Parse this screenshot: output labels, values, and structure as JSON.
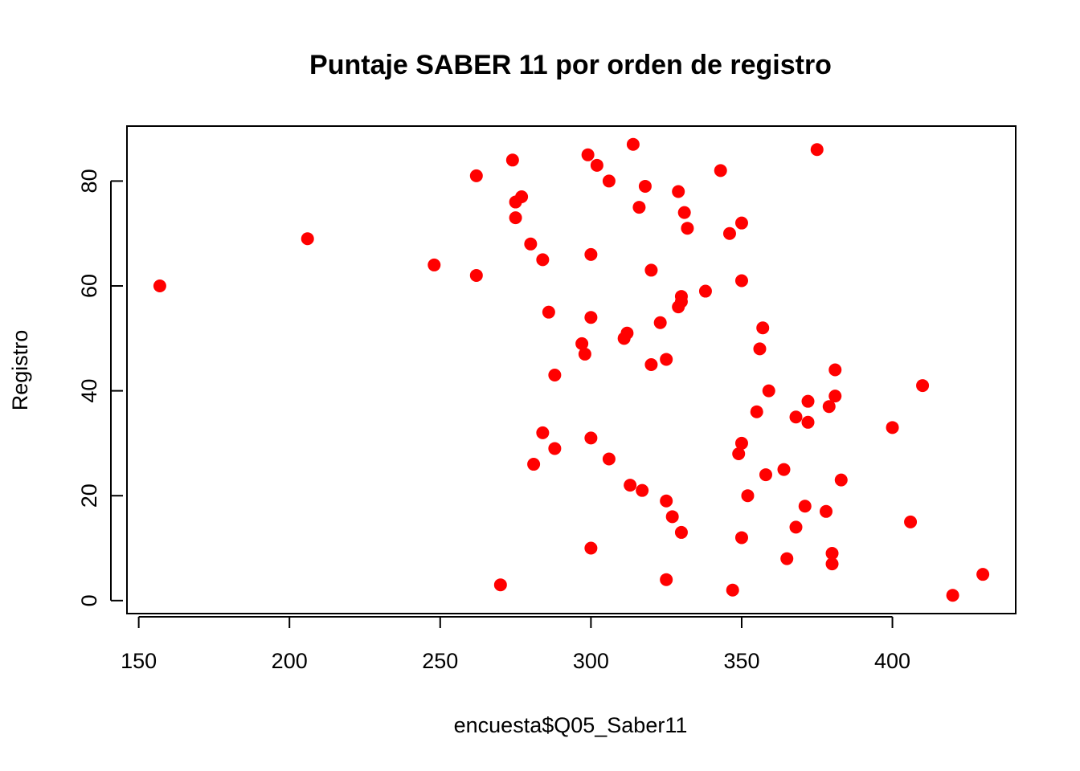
{
  "chart_data": {
    "type": "scatter",
    "title": "Puntaje SABER 11 por orden de registro",
    "xlabel": "encuesta$Q05_Saber11",
    "ylabel": "Registro",
    "xlim": [
      146.1,
      440.9
    ],
    "ylim": [
      -2.48,
      90.48
    ],
    "xticks": [
      150,
      200,
      250,
      300,
      350,
      400
    ],
    "yticks": [
      0,
      20,
      40,
      60,
      80
    ],
    "grid": false,
    "legend": false,
    "point_color": "#ff0000",
    "points": [
      {
        "x": 420,
        "y": 1
      },
      {
        "x": 347,
        "y": 2
      },
      {
        "x": 270,
        "y": 3
      },
      {
        "x": 325,
        "y": 4
      },
      {
        "x": 430,
        "y": 5
      },
      {
        "x": 380,
        "y": 7
      },
      {
        "x": 365,
        "y": 8
      },
      {
        "x": 380,
        "y": 9
      },
      {
        "x": 300,
        "y": 10
      },
      {
        "x": 350,
        "y": 12
      },
      {
        "x": 330,
        "y": 13
      },
      {
        "x": 368,
        "y": 14
      },
      {
        "x": 406,
        "y": 15
      },
      {
        "x": 327,
        "y": 16
      },
      {
        "x": 378,
        "y": 17
      },
      {
        "x": 371,
        "y": 18
      },
      {
        "x": 325,
        "y": 19
      },
      {
        "x": 352,
        "y": 20
      },
      {
        "x": 317,
        "y": 21
      },
      {
        "x": 313,
        "y": 22
      },
      {
        "x": 383,
        "y": 23
      },
      {
        "x": 358,
        "y": 24
      },
      {
        "x": 364,
        "y": 25
      },
      {
        "x": 281,
        "y": 26
      },
      {
        "x": 306,
        "y": 27
      },
      {
        "x": 349,
        "y": 28
      },
      {
        "x": 288,
        "y": 29
      },
      {
        "x": 350,
        "y": 30
      },
      {
        "x": 300,
        "y": 31
      },
      {
        "x": 284,
        "y": 32
      },
      {
        "x": 400,
        "y": 33
      },
      {
        "x": 372,
        "y": 34
      },
      {
        "x": 368,
        "y": 35
      },
      {
        "x": 355,
        "y": 36
      },
      {
        "x": 379,
        "y": 37
      },
      {
        "x": 372,
        "y": 38
      },
      {
        "x": 381,
        "y": 39
      },
      {
        "x": 359,
        "y": 40
      },
      {
        "x": 410,
        "y": 41
      },
      {
        "x": 288,
        "y": 43
      },
      {
        "x": 381,
        "y": 44
      },
      {
        "x": 320,
        "y": 45
      },
      {
        "x": 325,
        "y": 46
      },
      {
        "x": 298,
        "y": 47
      },
      {
        "x": 356,
        "y": 48
      },
      {
        "x": 297,
        "y": 49
      },
      {
        "x": 311,
        "y": 50
      },
      {
        "x": 312,
        "y": 51
      },
      {
        "x": 357,
        "y": 52
      },
      {
        "x": 323,
        "y": 53
      },
      {
        "x": 300,
        "y": 54
      },
      {
        "x": 286,
        "y": 55
      },
      {
        "x": 329,
        "y": 56
      },
      {
        "x": 330,
        "y": 57
      },
      {
        "x": 330,
        "y": 58
      },
      {
        "x": 338,
        "y": 59
      },
      {
        "x": 157,
        "y": 60
      },
      {
        "x": 350,
        "y": 61
      },
      {
        "x": 262,
        "y": 62
      },
      {
        "x": 320,
        "y": 63
      },
      {
        "x": 248,
        "y": 64
      },
      {
        "x": 284,
        "y": 65
      },
      {
        "x": 300,
        "y": 66
      },
      {
        "x": 280,
        "y": 68
      },
      {
        "x": 206,
        "y": 69
      },
      {
        "x": 346,
        "y": 70
      },
      {
        "x": 332,
        "y": 71
      },
      {
        "x": 350,
        "y": 72
      },
      {
        "x": 275,
        "y": 73
      },
      {
        "x": 331,
        "y": 74
      },
      {
        "x": 316,
        "y": 75
      },
      {
        "x": 275,
        "y": 76
      },
      {
        "x": 277,
        "y": 77
      },
      {
        "x": 329,
        "y": 78
      },
      {
        "x": 318,
        "y": 79
      },
      {
        "x": 306,
        "y": 80
      },
      {
        "x": 262,
        "y": 81
      },
      {
        "x": 343,
        "y": 82
      },
      {
        "x": 302,
        "y": 83
      },
      {
        "x": 274,
        "y": 84
      },
      {
        "x": 299,
        "y": 85
      },
      {
        "x": 375,
        "y": 86
      },
      {
        "x": 314,
        "y": 87
      }
    ]
  }
}
